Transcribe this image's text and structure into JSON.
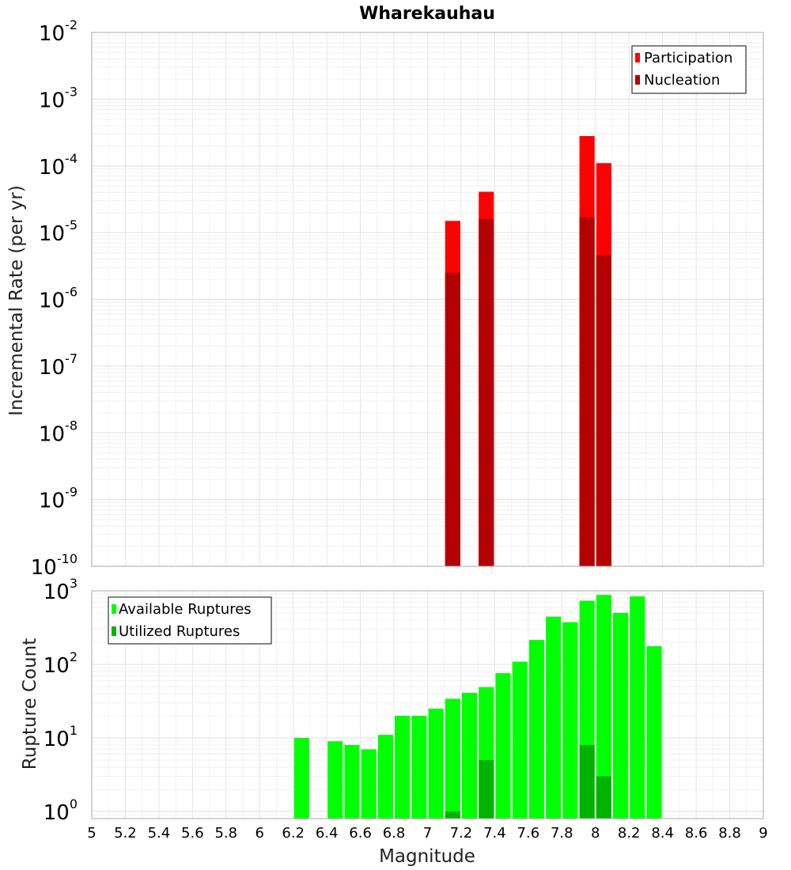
{
  "title": "Wharekauhau",
  "xlabel": "Magnitude",
  "chart_data": [
    {
      "type": "bar",
      "title": "Wharekauhau",
      "ylabel": "Incremental Rate (per yr)",
      "xlabel": "Magnitude",
      "yscale": "log",
      "xlim": [
        5,
        9
      ],
      "ylim": [
        1e-10,
        0.01
      ],
      "yticks": [
        {
          "base": "10",
          "exp": "-10"
        },
        {
          "base": "10",
          "exp": "-9"
        },
        {
          "base": "10",
          "exp": "-8"
        },
        {
          "base": "10",
          "exp": "-7"
        },
        {
          "base": "10",
          "exp": "-6"
        },
        {
          "base": "10",
          "exp": "-5"
        },
        {
          "base": "10",
          "exp": "-4"
        },
        {
          "base": "10",
          "exp": "-3"
        },
        {
          "base": "10",
          "exp": "-2"
        }
      ],
      "legend_position": "top-right",
      "grid": true,
      "bar_width": 0.09,
      "series": [
        {
          "name": "Participation",
          "color": "#ff0000",
          "points": [
            {
              "x": 7.15,
              "y": 1.5e-05
            },
            {
              "x": 7.35,
              "y": 4.1e-05
            },
            {
              "x": 7.95,
              "y": 0.00028
            },
            {
              "x": 8.05,
              "y": 0.00011
            }
          ]
        },
        {
          "name": "Nucleation",
          "color": "#b30000",
          "points": [
            {
              "x": 7.15,
              "y": 2.5e-06
            },
            {
              "x": 7.35,
              "y": 1.6e-05
            },
            {
              "x": 7.95,
              "y": 1.7e-05
            },
            {
              "x": 8.05,
              "y": 4.6e-06
            }
          ]
        }
      ]
    },
    {
      "type": "bar",
      "ylabel": "Rupture Count",
      "xlabel": "Magnitude",
      "yscale": "log",
      "xlim": [
        5,
        9
      ],
      "ylim": [
        0.8,
        1000
      ],
      "yticks": [
        {
          "value": 1,
          "base": "10",
          "exp": "0"
        },
        {
          "value": 10,
          "base": "10",
          "exp": "1"
        },
        {
          "value": 100,
          "base": "10",
          "exp": "2"
        },
        {
          "value": 1000,
          "base": "10",
          "exp": "3"
        }
      ],
      "xticks": [
        "5",
        "5.2",
        "5.4",
        "5.6",
        "5.8",
        "6",
        "6.2",
        "6.4",
        "6.6",
        "6.8",
        "7",
        "7.2",
        "7.4",
        "7.6",
        "7.8",
        "8",
        "8.2",
        "8.4",
        "8.6",
        "8.8",
        "9"
      ],
      "legend_position": "top-left",
      "grid": true,
      "bar_width": 0.09,
      "series": [
        {
          "name": "Available Ruptures",
          "color": "#00ff00",
          "points": [
            {
              "x": 6.25,
              "y": 10
            },
            {
              "x": 6.45,
              "y": 9
            },
            {
              "x": 6.55,
              "y": 8
            },
            {
              "x": 6.65,
              "y": 7
            },
            {
              "x": 6.75,
              "y": 11
            },
            {
              "x": 6.85,
              "y": 20
            },
            {
              "x": 6.95,
              "y": 20
            },
            {
              "x": 7.05,
              "y": 25
            },
            {
              "x": 7.15,
              "y": 34
            },
            {
              "x": 7.25,
              "y": 41
            },
            {
              "x": 7.35,
              "y": 49
            },
            {
              "x": 7.45,
              "y": 76
            },
            {
              "x": 7.55,
              "y": 109
            },
            {
              "x": 7.65,
              "y": 215
            },
            {
              "x": 7.75,
              "y": 445
            },
            {
              "x": 7.85,
              "y": 375
            },
            {
              "x": 7.95,
              "y": 732
            },
            {
              "x": 8.05,
              "y": 880
            },
            {
              "x": 8.15,
              "y": 500
            },
            {
              "x": 8.25,
              "y": 840
            },
            {
              "x": 8.35,
              "y": 177
            }
          ]
        },
        {
          "name": "Utilized Ruptures",
          "color": "#00b300",
          "points": [
            {
              "x": 7.15,
              "y": 1
            },
            {
              "x": 7.35,
              "y": 5
            },
            {
              "x": 7.95,
              "y": 8
            },
            {
              "x": 8.05,
              "y": 3
            }
          ]
        }
      ]
    }
  ]
}
